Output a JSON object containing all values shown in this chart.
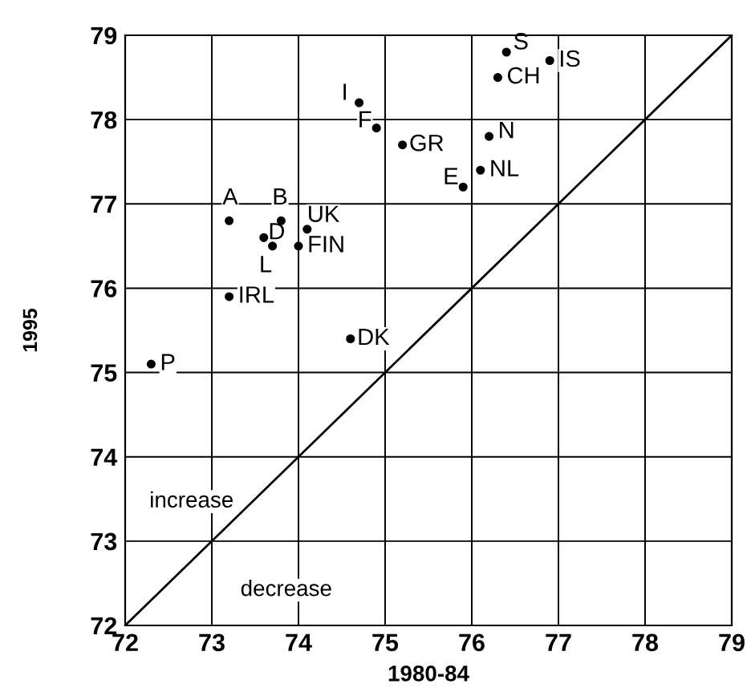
{
  "chart_data": {
    "type": "scatter",
    "xlabel": "1980-84",
    "ylabel": "1995",
    "series": [
      {
        "marker": "circle",
        "color": "#000000",
        "x": [
          74.7,
          74.9,
          73.2,
          73.6,
          73.7,
          73.8,
          74.1,
          74.0,
          73.2,
          72.3,
          74.6,
          76.4,
          76.9,
          76.3,
          76.2,
          75.2,
          76.1,
          75.9
        ],
        "values": [
          78.2,
          77.9,
          76.8,
          76.6,
          76.5,
          76.8,
          76.7,
          76.5,
          75.9,
          75.1,
          75.4,
          78.8,
          78.7,
          78.5,
          77.8,
          77.7,
          77.4,
          77.2
        ]
      },
      {
        "type": "line",
        "marker": "none",
        "color": "#000000",
        "x": [
          72,
          79
        ],
        "values": [
          72,
          79
        ]
      }
    ],
    "annotations": [
      {
        "text": "I",
        "x": 74.7,
        "y": 78.2
      },
      {
        "text": "F",
        "x": 74.9,
        "y": 77.9
      },
      {
        "text": "A",
        "x": 73.2,
        "y": 76.8
      },
      {
        "text": "D",
        "x": 73.6,
        "y": 76.6
      },
      {
        "text": "L",
        "x": 73.7,
        "y": 76.5
      },
      {
        "text": "B",
        "x": 73.8,
        "y": 76.8
      },
      {
        "text": "UK",
        "x": 74.1,
        "y": 76.7
      },
      {
        "text": "FIN",
        "x": 74.0,
        "y": 76.5
      },
      {
        "text": "IRL",
        "x": 73.2,
        "y": 75.9
      },
      {
        "text": "P",
        "x": 72.3,
        "y": 75.1
      },
      {
        "text": "DK",
        "x": 74.6,
        "y": 75.4
      },
      {
        "text": "S",
        "x": 76.4,
        "y": 78.8
      },
      {
        "text": "IS",
        "x": 76.9,
        "y": 78.7
      },
      {
        "text": "CH",
        "x": 76.3,
        "y": 78.5
      },
      {
        "text": "N",
        "x": 76.2,
        "y": 77.8
      },
      {
        "text": "GR",
        "x": 75.2,
        "y": 77.7
      },
      {
        "text": "NL",
        "x": 76.1,
        "y": 77.4
      },
      {
        "text": "E",
        "x": 75.9,
        "y": 77.2
      },
      "increase",
      "decrease"
    ],
    "xlim": [
      72,
      79
    ],
    "ylim": [
      72,
      79
    ],
    "xticks": [
      72,
      73,
      74,
      75,
      76,
      77,
      78,
      79
    ],
    "yticks": [
      72,
      73,
      74,
      75,
      76,
      77,
      78,
      79
    ],
    "grid": true,
    "line_style": "solid",
    "legend": false
  }
}
